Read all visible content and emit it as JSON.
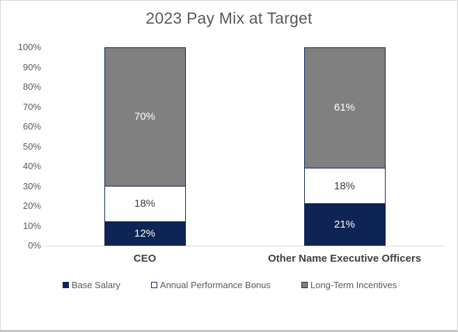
{
  "title": "2023 Pay Mix at Target",
  "colors": {
    "navy": "#0e2455",
    "gray": "#808080",
    "white": "#ffffff",
    "axis_text": "#595959",
    "category_text": "#404040",
    "baseline": "#d9d9d9"
  },
  "chart_data": {
    "type": "bar",
    "stacked": true,
    "title": "2023 Pay Mix at Target",
    "categories": [
      "CEO",
      "Other Name Executive Officers"
    ],
    "series": [
      {
        "name": "Base Salary",
        "values": [
          12,
          21
        ],
        "color": "#0e2455",
        "label_color": "#ffffff"
      },
      {
        "name": "Annual Performance Bonus",
        "values": [
          18,
          18
        ],
        "color": "#ffffff",
        "label_color": "#404040"
      },
      {
        "name": "Long-Term Incentives",
        "values": [
          70,
          61
        ],
        "color": "#808080",
        "label_color": "#ffffff"
      }
    ],
    "value_suffix": "%",
    "xlabel": "",
    "ylabel": "",
    "ylim": [
      0,
      100
    ],
    "yticks": [
      "0%",
      "10%",
      "20%",
      "30%",
      "40%",
      "50%",
      "60%",
      "70%",
      "80%",
      "90%",
      "100%"
    ],
    "grid": false,
    "legend_position": "bottom"
  }
}
